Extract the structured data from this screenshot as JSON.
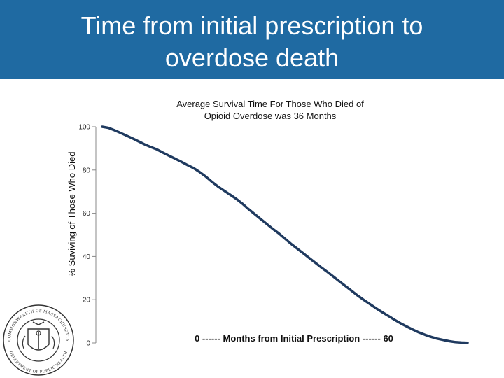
{
  "header": {
    "title_line1": "Time from initial prescription to",
    "title_line2": "overdose death"
  },
  "logo": {
    "icon": "massachusetts-dph-seal-icon",
    "text_top": "COMMONWEALTH OF MASSACHUSETTS",
    "text_bottom": "DEPARTMENT OF PUBLIC HEALTH"
  },
  "colors": {
    "header_bg": "#1f6aa2",
    "line": "#1f3a5f"
  },
  "chart_data": {
    "type": "line",
    "title": "",
    "subtitle_line1": "Average Survival Time For Those Who Died of",
    "subtitle_line2": "Opioid Overdose was 36 Months",
    "xlabel": "0 ------ Months from Initial Prescription ------ 60",
    "ylabel": "% Suviving of Those Who Died",
    "xlim": [
      0,
      60
    ],
    "ylim": [
      0,
      100
    ],
    "yticks": [
      "0",
      "20",
      "40",
      "60",
      "80",
      "100"
    ],
    "grid": false,
    "series": [
      {
        "x": [
          0,
          1,
          2,
          3,
          4,
          5,
          6,
          7,
          8,
          9,
          10,
          11,
          12,
          13,
          14,
          15,
          16,
          17,
          18,
          19,
          20,
          21,
          22,
          23,
          24,
          25,
          26,
          27,
          28,
          29,
          30,
          31,
          32,
          33,
          34,
          35,
          36,
          37,
          38,
          39,
          40,
          41,
          42,
          43,
          44,
          45,
          46,
          47,
          48,
          49,
          50,
          51,
          52,
          53,
          54,
          55,
          56,
          57,
          58,
          59,
          60
        ],
        "values": [
          100,
          99.5,
          98.4,
          97.2,
          95.9,
          94.6,
          93.2,
          91.8,
          90.6,
          89.5,
          88.0,
          86.6,
          85.2,
          83.8,
          82.3,
          80.9,
          79.1,
          77.0,
          74.6,
          72.4,
          70.5,
          68.6,
          66.7,
          64.5,
          62.0,
          59.7,
          57.4,
          55.1,
          52.8,
          50.7,
          48.3,
          45.9,
          43.7,
          41.5,
          39.3,
          37.1,
          34.9,
          32.8,
          30.6,
          28.4,
          26.2,
          24.0,
          21.8,
          19.8,
          17.9,
          16.0,
          14.2,
          12.5,
          10.7,
          9.1,
          7.6,
          6.2,
          4.9,
          3.8,
          2.8,
          2.0,
          1.4,
          0.8,
          0.4,
          0.2,
          0.1
        ]
      }
    ]
  }
}
